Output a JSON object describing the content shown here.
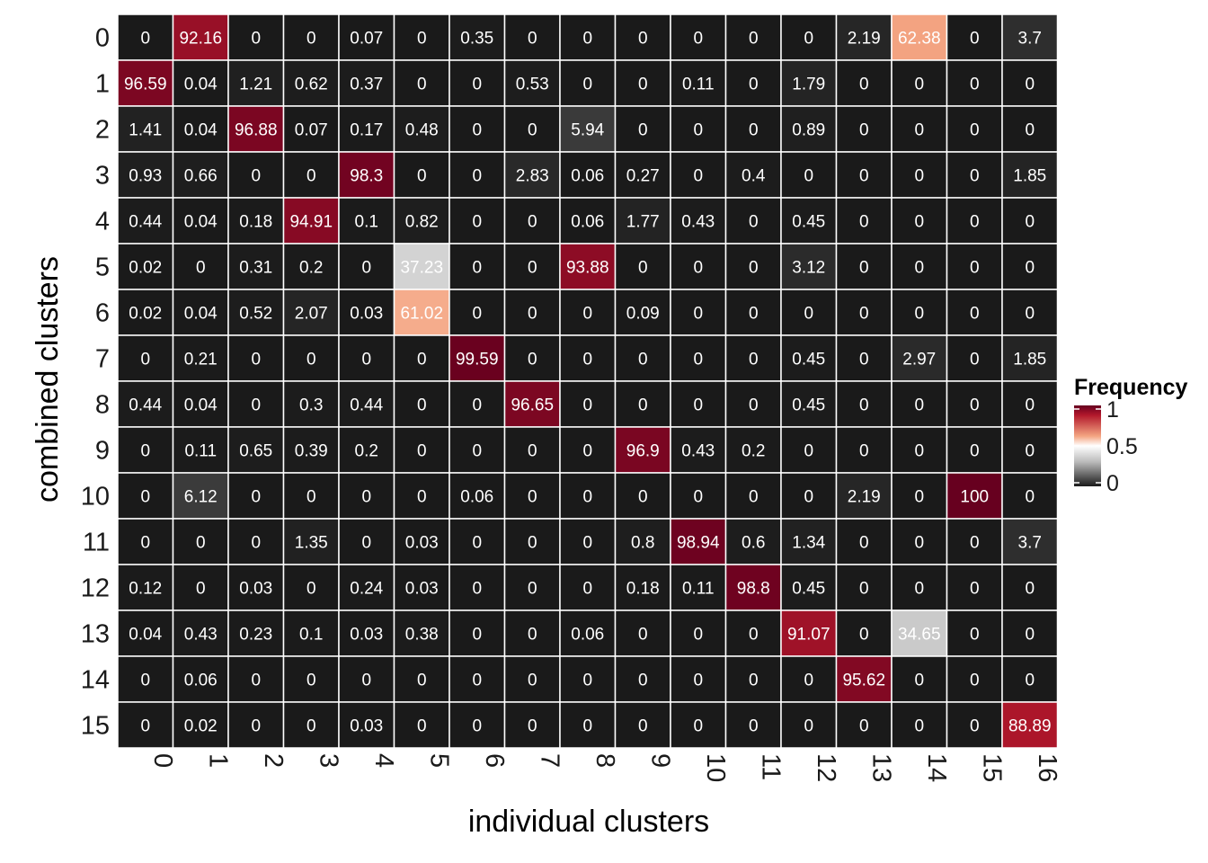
{
  "chart_data": {
    "type": "heatmap",
    "xlabel": "individual clusters",
    "ylabel": "combined clusters",
    "x_categories": [
      "0",
      "1",
      "2",
      "3",
      "4",
      "5",
      "6",
      "7",
      "8",
      "9",
      "10",
      "11",
      "12",
      "13",
      "14",
      "15",
      "16"
    ],
    "y_categories": [
      "0",
      "1",
      "2",
      "3",
      "4",
      "5",
      "6",
      "7",
      "8",
      "9",
      "10",
      "11",
      "12",
      "13",
      "14",
      "15"
    ],
    "values": [
      [
        "0",
        "92.16",
        "0",
        "0",
        "0.07",
        "0",
        "0.35",
        "0",
        "0",
        "0",
        "0",
        "0",
        "0",
        "2.19",
        "62.38",
        "0",
        "3.7"
      ],
      [
        "96.59",
        "0.04",
        "1.21",
        "0.62",
        "0.37",
        "0",
        "0",
        "0.53",
        "0",
        "0",
        "0.11",
        "0",
        "1.79",
        "0",
        "0",
        "0",
        "0"
      ],
      [
        "1.41",
        "0.04",
        "96.88",
        "0.07",
        "0.17",
        "0.48",
        "0",
        "0",
        "5.94",
        "0",
        "0",
        "0",
        "0.89",
        "0",
        "0",
        "0",
        "0"
      ],
      [
        "0.93",
        "0.66",
        "0",
        "0",
        "98.3",
        "0",
        "0",
        "2.83",
        "0.06",
        "0.27",
        "0",
        "0.4",
        "0",
        "0",
        "0",
        "0",
        "1.85"
      ],
      [
        "0.44",
        "0.04",
        "0.18",
        "94.91",
        "0.1",
        "0.82",
        "0",
        "0",
        "0.06",
        "1.77",
        "0.43",
        "0",
        "0.45",
        "0",
        "0",
        "0",
        "0"
      ],
      [
        "0.02",
        "0",
        "0.31",
        "0.2",
        "0",
        "37.23",
        "0",
        "0",
        "93.88",
        "0",
        "0",
        "0",
        "3.12",
        "0",
        "0",
        "0",
        "0"
      ],
      [
        "0.02",
        "0.04",
        "0.52",
        "2.07",
        "0.03",
        "61.02",
        "0",
        "0",
        "0",
        "0.09",
        "0",
        "0",
        "0",
        "0",
        "0",
        "0",
        "0"
      ],
      [
        "0",
        "0.21",
        "0",
        "0",
        "0",
        "0",
        "99.59",
        "0",
        "0",
        "0",
        "0",
        "0",
        "0.45",
        "0",
        "2.97",
        "0",
        "1.85"
      ],
      [
        "0.44",
        "0.04",
        "0",
        "0.3",
        "0.44",
        "0",
        "0",
        "96.65",
        "0",
        "0",
        "0",
        "0",
        "0.45",
        "0",
        "0",
        "0",
        "0"
      ],
      [
        "0",
        "0.11",
        "0.65",
        "0.39",
        "0.2",
        "0",
        "0",
        "0",
        "0",
        "96.9",
        "0.43",
        "0.2",
        "0",
        "0",
        "0",
        "0",
        "0"
      ],
      [
        "0",
        "6.12",
        "0",
        "0",
        "0",
        "0",
        "0.06",
        "0",
        "0",
        "0",
        "0",
        "0",
        "0",
        "2.19",
        "0",
        "100",
        "0"
      ],
      [
        "0",
        "0",
        "0",
        "1.35",
        "0",
        "0.03",
        "0",
        "0",
        "0",
        "0.8",
        "98.94",
        "0.6",
        "1.34",
        "0",
        "0",
        "0",
        "3.7"
      ],
      [
        "0.12",
        "0",
        "0.03",
        "0",
        "0.24",
        "0.03",
        "0",
        "0",
        "0",
        "0.18",
        "0.11",
        "98.8",
        "0.45",
        "0",
        "0",
        "0",
        "0"
      ],
      [
        "0.04",
        "0.43",
        "0.23",
        "0.1",
        "0.03",
        "0.38",
        "0",
        "0",
        "0.06",
        "0",
        "0",
        "0",
        "91.07",
        "0",
        "34.65",
        "0",
        "0"
      ],
      [
        "0",
        "0.06",
        "0",
        "0",
        "0",
        "0",
        "0",
        "0",
        "0",
        "0",
        "0",
        "0",
        "0",
        "95.62",
        "0",
        "0",
        "0"
      ],
      [
        "0",
        "0.02",
        "0",
        "0",
        "0.03",
        "0",
        "0",
        "0",
        "0",
        "0",
        "0",
        "0",
        "0",
        "0",
        "0",
        "0",
        "88.89"
      ]
    ],
    "color_scale": {
      "title": "Frequency",
      "min": 0,
      "max": 1,
      "ticks": [
        "0",
        "0.5",
        "1"
      ],
      "colors": [
        "#1a1a1a",
        "#bababa",
        "#ffffff",
        "#f4a582",
        "#b2182b",
        "#67001f"
      ]
    },
    "grid_color": "#ffffff",
    "legend_position": "right"
  }
}
